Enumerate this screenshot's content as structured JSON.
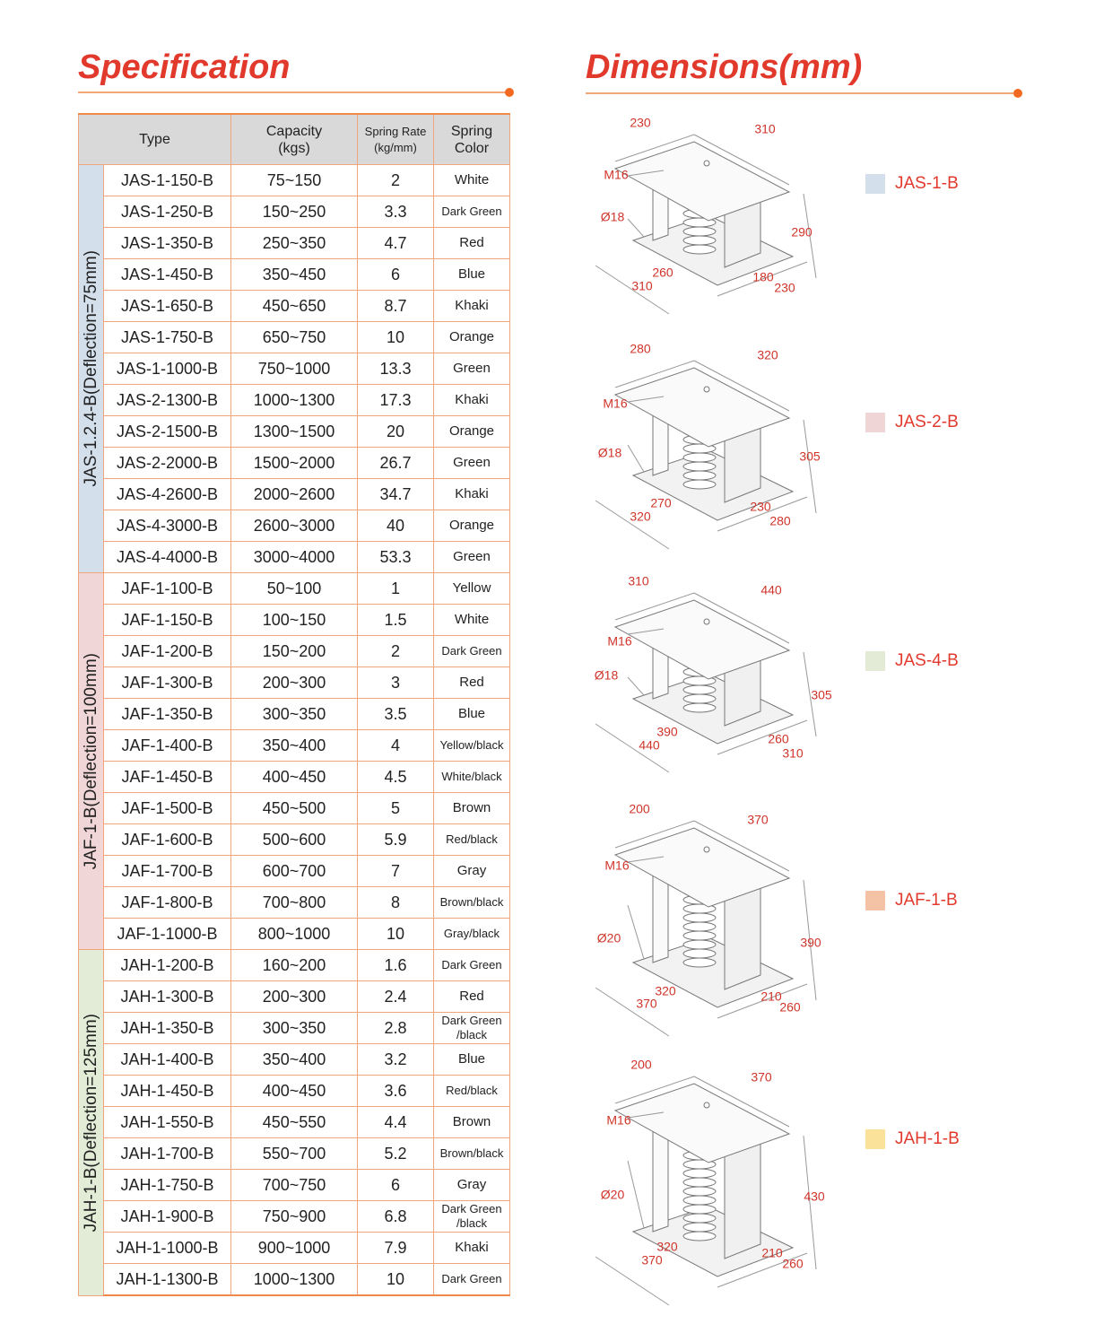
{
  "header": {
    "specification": "Specification",
    "dimensions": "Dimensions(mm)"
  },
  "table": {
    "columns": [
      [
        "Type"
      ],
      [
        "Capacity",
        "(kgs)"
      ],
      [
        "Spring Rate",
        "(kg/mm)"
      ],
      [
        "Spring",
        "Color"
      ]
    ],
    "groups": [
      {
        "label": "JAS-1.2.4-B(Deflection=75mm)",
        "color": "#d3dfeb",
        "rows": [
          [
            "JAS-1-150-B",
            "75~150",
            2,
            "White"
          ],
          [
            "JAS-1-250-B",
            "150~250",
            3.3,
            "Dark Green"
          ],
          [
            "JAS-1-350-B",
            "250~350",
            4.7,
            "Red"
          ],
          [
            "JAS-1-450-B",
            "350~450",
            6,
            "Blue"
          ],
          [
            "JAS-1-650-B",
            "450~650",
            8.7,
            "Khaki"
          ],
          [
            "JAS-1-750-B",
            "650~750",
            10,
            "Orange"
          ],
          [
            "JAS-1-1000-B",
            "750~1000",
            13.3,
            "Green"
          ],
          [
            "JAS-2-1300-B",
            "1000~1300",
            17.3,
            "Khaki"
          ],
          [
            "JAS-2-1500-B",
            "1300~1500",
            20,
            "Orange"
          ],
          [
            "JAS-2-2000-B",
            "1500~2000",
            26.7,
            "Green"
          ],
          [
            "JAS-4-2600-B",
            "2000~2600",
            34.7,
            "Khaki"
          ],
          [
            "JAS-4-3000-B",
            "2600~3000",
            40,
            "Orange"
          ],
          [
            "JAS-4-4000-B",
            "3000~4000",
            53.3,
            "Green"
          ]
        ]
      },
      {
        "label": "JAF-1-B(Deflection=100mm)",
        "color": "#f1d6d8",
        "rows": [
          [
            "JAF-1-100-B",
            "50~100",
            1,
            "Yellow"
          ],
          [
            "JAF-1-150-B",
            "100~150",
            1.5,
            "White"
          ],
          [
            "JAF-1-200-B",
            "150~200",
            2,
            "Dark Green"
          ],
          [
            "JAF-1-300-B",
            "200~300",
            3,
            "Red"
          ],
          [
            "JAF-1-350-B",
            "300~350",
            3.5,
            "Blue"
          ],
          [
            "JAF-1-400-B",
            "350~400",
            4,
            "Yellow/black"
          ],
          [
            "JAF-1-450-B",
            "400~450",
            4.5,
            "White/black"
          ],
          [
            "JAF-1-500-B",
            "450~500",
            5,
            "Brown"
          ],
          [
            "JAF-1-600-B",
            "500~600",
            5.9,
            "Red/black"
          ],
          [
            "JAF-1-700-B",
            "600~700",
            7,
            "Gray"
          ],
          [
            "JAF-1-800-B",
            "700~800",
            8,
            "Brown/black"
          ],
          [
            "JAF-1-1000-B",
            "800~1000",
            10,
            "Gray/black"
          ]
        ]
      },
      {
        "label": "JAH-1-B(Deflection=125mm)",
        "color": "#e3ecd7",
        "rows": [
          [
            "JAH-1-200-B",
            "160~200",
            1.6,
            "Dark Green"
          ],
          [
            "JAH-1-300-B",
            "200~300",
            2.4,
            "Red"
          ],
          [
            "JAH-1-350-B",
            "300~350",
            2.8,
            "Dark Green /black"
          ],
          [
            "JAH-1-400-B",
            "350~400",
            3.2,
            "Blue"
          ],
          [
            "JAH-1-450-B",
            "400~450",
            3.6,
            "Red/black"
          ],
          [
            "JAH-1-550-B",
            "450~550",
            4.4,
            "Brown"
          ],
          [
            "JAH-1-700-B",
            "550~700",
            5.2,
            "Brown/black"
          ],
          [
            "JAH-1-750-B",
            "700~750",
            6,
            "Gray"
          ],
          [
            "JAH-1-900-B",
            "750~900",
            6.8,
            "Dark Green /black"
          ],
          [
            "JAH-1-1000-B",
            "900~1000",
            7.9,
            "Khaki"
          ],
          [
            "JAH-1-1300-B",
            "1000~1300",
            10,
            "Dark Green"
          ]
        ]
      }
    ]
  },
  "diagrams": [
    {
      "model": "JAS-1-B",
      "color": "#d3dfeb",
      "labels": [
        "230",
        "310",
        "M16",
        "Ø18",
        "290",
        "260",
        "310",
        "180",
        "230"
      ]
    },
    {
      "model": "JAS-2-B",
      "color": "#f0d5d6",
      "labels": [
        "280",
        "320",
        "M16",
        "Ø18",
        "305",
        "270",
        "320",
        "230",
        "280"
      ]
    },
    {
      "model": "JAS-4-B",
      "color": "#e3ebd6",
      "labels": [
        "310",
        "440",
        "M16",
        "Ø18",
        "305",
        "390",
        "440",
        "260",
        "310"
      ]
    },
    {
      "model": "JAF-1-B",
      "color": "#f4c3a5",
      "labels": [
        "200",
        "370",
        "M16",
        "Ø20",
        "390",
        "320",
        "370",
        "210",
        "260"
      ]
    },
    {
      "model": "JAH-1-B",
      "color": "#fbe29a",
      "labels": [
        "200",
        "370",
        "M16",
        "Ø20",
        "430",
        "320",
        "370",
        "210",
        "260"
      ]
    }
  ]
}
